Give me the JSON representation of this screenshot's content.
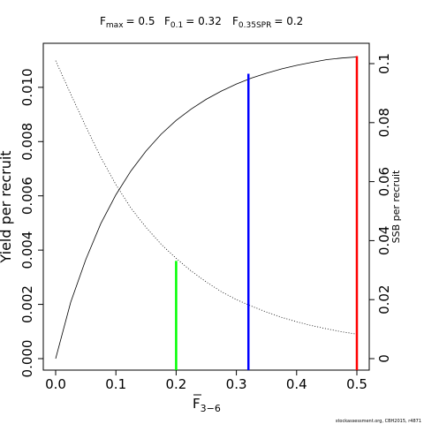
{
  "chart_data": {
    "type": "line",
    "header": {
      "fmax_main": "F",
      "fmax_sub": "max",
      "fmax_val": "= 0.5",
      "f01_main": "F",
      "f01_sub": "0.1",
      "f01_val": "= 0.32",
      "fspr_main": "F",
      "fspr_sub": "0.35SPR",
      "fspr_val": "= 0.2"
    },
    "xlabel": {
      "main": "F",
      "sub": "3−6"
    },
    "ylabel": "Yield per recruit",
    "y2label": "SSB per recruit",
    "footer": "stockassessment.org, CBH2015, r4871",
    "xlim": [
      0,
      0.5
    ],
    "ylim": [
      0,
      0.0112
    ],
    "y2lim": [
      0,
      0.103
    ],
    "xticks": [
      "0.0",
      "0.1",
      "0.2",
      "0.3",
      "0.4",
      "0.5"
    ],
    "yticks": [
      "0.000",
      "0.002",
      "0.004",
      "0.006",
      "0.008",
      "0.010"
    ],
    "y2ticks": [
      "0",
      "0.02",
      "0.04",
      "0.06",
      "0.08",
      "0.1"
    ],
    "series": [
      {
        "axis": "left",
        "style": "solid",
        "color": "#000000",
        "x": [
          0,
          0.025,
          0.05,
          0.075,
          0.1,
          0.125,
          0.15,
          0.175,
          0.2,
          0.225,
          0.25,
          0.275,
          0.3,
          0.325,
          0.35,
          0.375,
          0.4,
          0.425,
          0.45,
          0.475,
          0.5
        ],
        "y": [
          0,
          0.00208,
          0.00365,
          0.00498,
          0.00604,
          0.00692,
          0.00765,
          0.00827,
          0.00878,
          0.0092,
          0.00956,
          0.00986,
          0.01012,
          0.01034,
          0.01052,
          0.01068,
          0.01081,
          0.01092,
          0.01102,
          0.01108,
          0.01112
        ]
      },
      {
        "axis": "right",
        "style": "dotted",
        "color": "#000000",
        "x": [
          0,
          0.025,
          0.05,
          0.075,
          0.1,
          0.125,
          0.15,
          0.175,
          0.2,
          0.225,
          0.25,
          0.275,
          0.3,
          0.325,
          0.35,
          0.375,
          0.4,
          0.425,
          0.45,
          0.475,
          0.5
        ],
        "y": [
          0.101,
          0.0897,
          0.0787,
          0.0682,
          0.059,
          0.051,
          0.0445,
          0.0388,
          0.034,
          0.0297,
          0.026,
          0.0227,
          0.02,
          0.0178,
          0.0158,
          0.014,
          0.0125,
          0.0112,
          0.0101,
          0.0091,
          0.0083
        ]
      }
    ],
    "reference_lines": [
      {
        "x": 0.2,
        "y": 0.0036,
        "color": "#00ff00"
      },
      {
        "x": 0.32,
        "y": 0.0105,
        "color": "#0000ff"
      },
      {
        "x": 0.5,
        "y": 0.01115,
        "color": "#ff0000"
      }
    ]
  }
}
